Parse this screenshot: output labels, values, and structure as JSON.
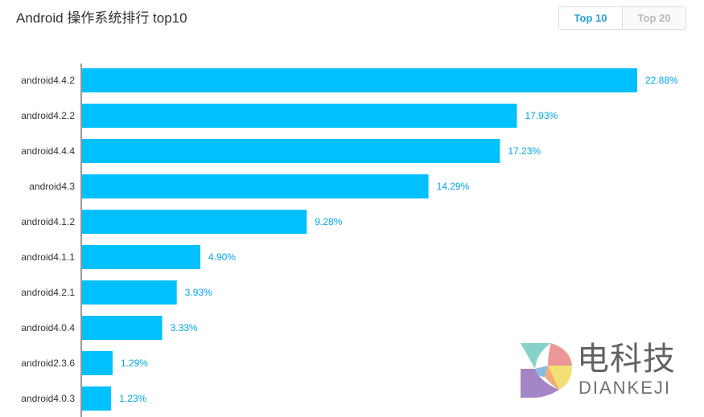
{
  "header": {
    "title": "Android 操作系统排行 top10",
    "tabs": [
      {
        "label": "Top 10",
        "active": true
      },
      {
        "label": "Top 20",
        "active": false
      }
    ]
  },
  "chart_data": {
    "type": "bar",
    "orientation": "horizontal",
    "categories": [
      "android4.4.2",
      "android4.2.2",
      "android4.4.4",
      "android4.3",
      "android4.1.2",
      "android4.1.1",
      "android4.2.1",
      "android4.0.4",
      "android2.3.6",
      "android4.0.3"
    ],
    "values": [
      22.88,
      17.93,
      17.23,
      14.29,
      9.28,
      4.9,
      3.93,
      3.33,
      1.29,
      1.23
    ],
    "value_labels": [
      "22.88%",
      "17.93%",
      "17.23%",
      "14.29%",
      "9.28%",
      "4.90%",
      "3.93%",
      "3.33%",
      "1.29%",
      "1.23%"
    ],
    "title": "Android 操作系统排行 top10",
    "xlabel": "",
    "ylabel": "",
    "xlim": [
      0,
      23
    ],
    "grid": false,
    "colors": {
      "bar": "#00c1fd",
      "label": "#00a6e6",
      "axis": "#333333"
    }
  },
  "watermark": {
    "chinese": "电科技",
    "english": "DIANKEJI"
  }
}
